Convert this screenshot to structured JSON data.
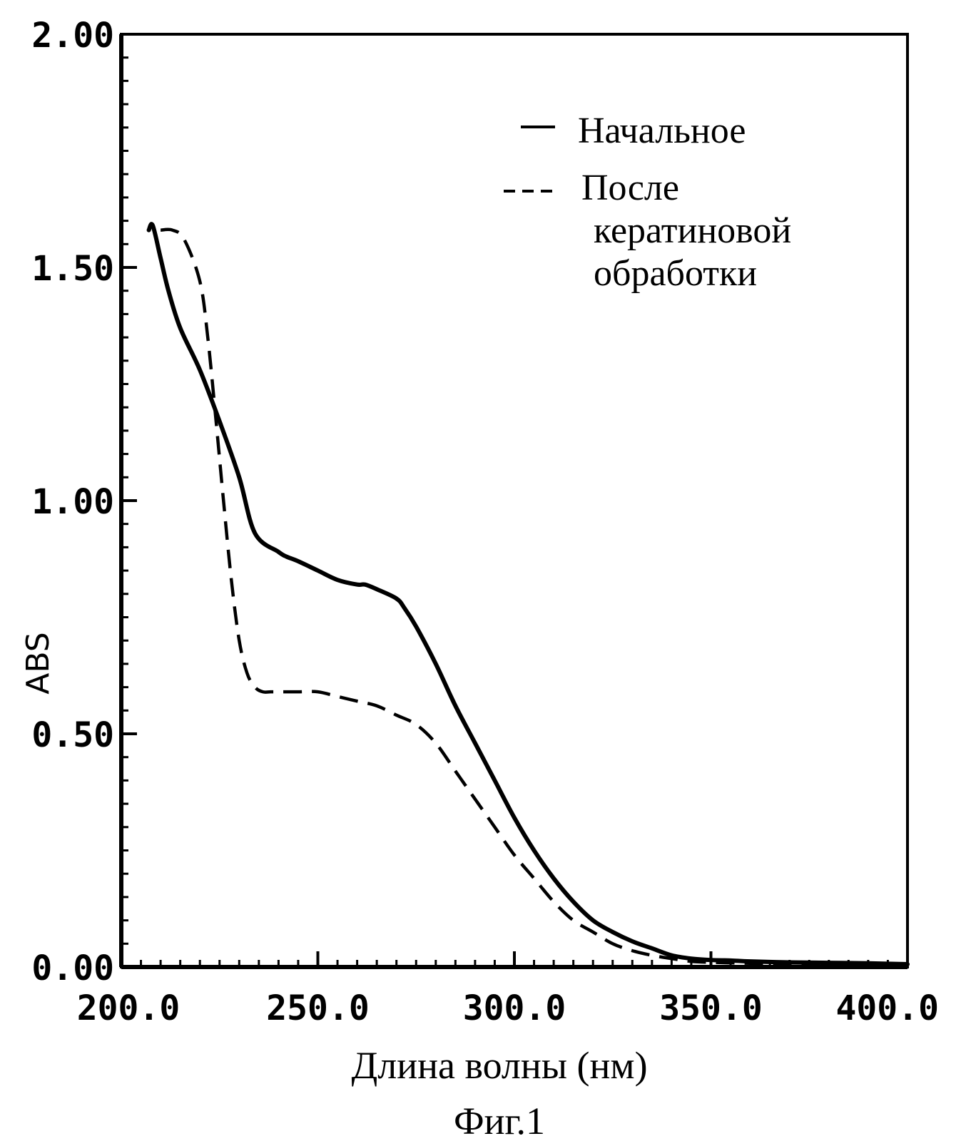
{
  "chart_data": {
    "type": "line",
    "xlabel": "Длина волны (нм)",
    "ylabel": "ABS",
    "caption": "Фиг.1",
    "xlim": [
      200,
      400
    ],
    "ylim": [
      0,
      2
    ],
    "xticks": [
      200,
      250,
      300,
      350,
      400
    ],
    "xtick_labels": [
      "200.0",
      "250.0",
      "300.0",
      "350.0",
      "400.0"
    ],
    "yticks": [
      0,
      0.5,
      1.0,
      1.5,
      2.0
    ],
    "ytick_labels": [
      "0.00",
      "0.50",
      "1.00",
      "1.50",
      "2.00"
    ],
    "legend_position": "top-right",
    "series": [
      {
        "name": "Начальное",
        "style": "solid",
        "x": [
          207,
          208,
          210,
          212,
          215,
          220,
          225,
          230,
          234,
          240,
          242,
          245,
          250,
          255,
          260,
          262,
          265,
          270,
          272,
          275,
          280,
          285,
          290,
          295,
          300,
          305,
          310,
          315,
          320,
          325,
          330,
          335,
          340,
          345,
          350,
          355,
          360,
          370,
          380,
          390,
          400
        ],
        "y": [
          1.58,
          1.59,
          1.52,
          1.45,
          1.37,
          1.28,
          1.17,
          1.05,
          0.93,
          0.89,
          0.88,
          0.87,
          0.85,
          0.83,
          0.82,
          0.82,
          0.81,
          0.79,
          0.77,
          0.73,
          0.65,
          0.56,
          0.48,
          0.4,
          0.32,
          0.25,
          0.19,
          0.14,
          0.1,
          0.075,
          0.055,
          0.04,
          0.025,
          0.018,
          0.015,
          0.014,
          0.012,
          0.01,
          0.009,
          0.008,
          0.006
        ]
      },
      {
        "name": "После кератиновой обработки",
        "style": "dashed",
        "x": [
          210,
          213,
          216,
          220,
          222,
          224,
          226,
          228,
          230,
          232,
          234,
          236,
          238,
          240,
          245,
          250,
          255,
          260,
          265,
          270,
          275,
          280,
          285,
          290,
          295,
          300,
          305,
          310,
          315,
          320,
          325,
          330,
          335,
          340,
          345,
          350,
          360,
          370,
          380,
          390,
          400
        ],
        "y": [
          1.58,
          1.58,
          1.56,
          1.47,
          1.35,
          1.18,
          1.0,
          0.83,
          0.7,
          0.63,
          0.6,
          0.59,
          0.59,
          0.59,
          0.59,
          0.59,
          0.58,
          0.57,
          0.56,
          0.54,
          0.52,
          0.48,
          0.42,
          0.36,
          0.3,
          0.24,
          0.19,
          0.14,
          0.1,
          0.075,
          0.05,
          0.035,
          0.025,
          0.018,
          0.012,
          0.01,
          0.008,
          0.006,
          0.005,
          0.005,
          0.005
        ]
      }
    ]
  }
}
